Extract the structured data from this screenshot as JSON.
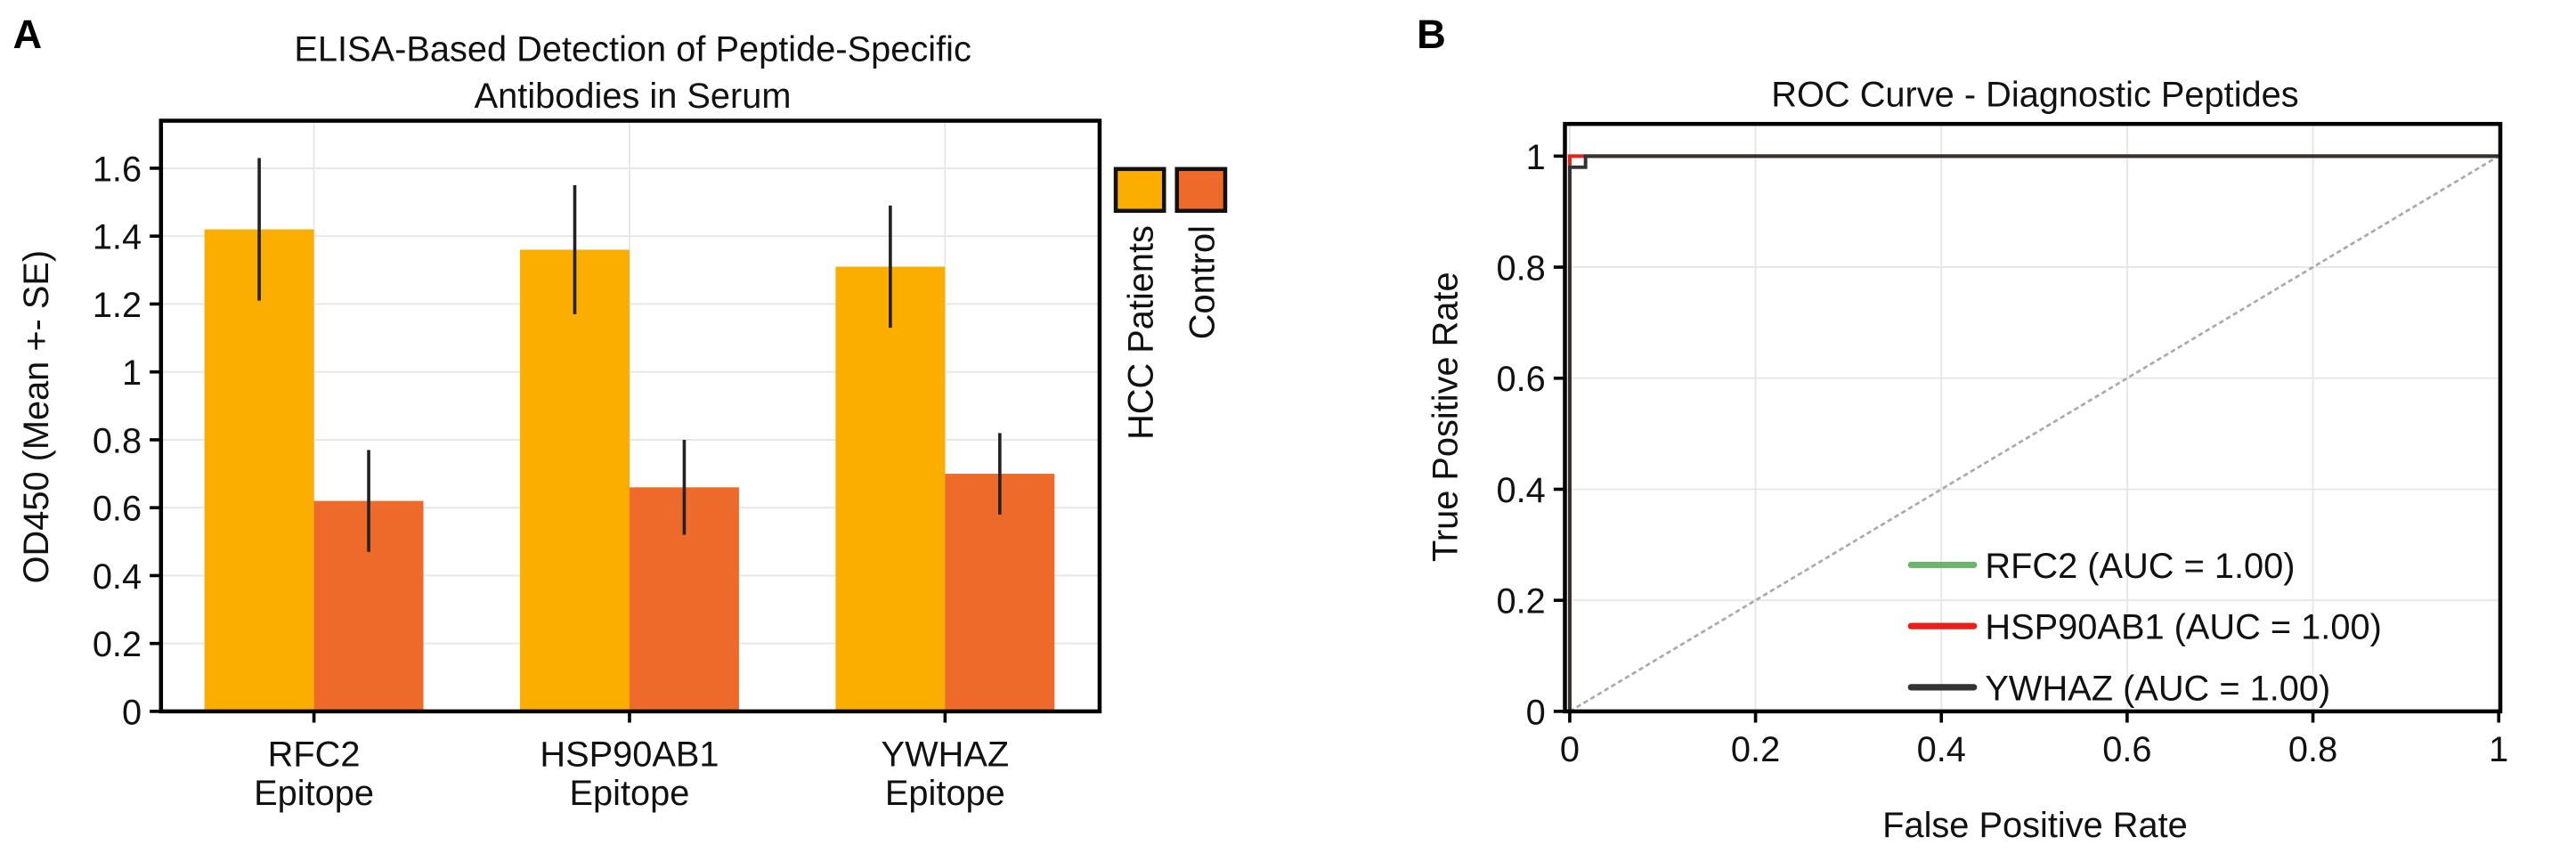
{
  "chart_data": [
    {
      "type": "bar",
      "panel_label": "A",
      "title_lines": [
        "ELISA-Based Detection of Peptide-Specific",
        "Antibodies in Serum"
      ],
      "xlabel": "",
      "ylabel": "OD450 (Mean +- SE)",
      "ylim": [
        0,
        1.74
      ],
      "yticks": [
        0,
        0.2,
        0.4,
        0.6,
        0.8,
        1,
        1.2,
        1.4,
        1.6
      ],
      "categories": [
        [
          "RFC2",
          "Epitope"
        ],
        [
          "HSP90AB1",
          "Epitope"
        ],
        [
          "YWHAZ",
          "Epitope"
        ]
      ],
      "grid": true,
      "legend_placement": "right",
      "series": [
        {
          "name": "HCC Patients",
          "color": "#FBAE00",
          "values": [
            1.42,
            1.36,
            1.31
          ],
          "err_low": [
            1.21,
            1.17,
            1.13
          ],
          "err_high": [
            1.63,
            1.55,
            1.49
          ]
        },
        {
          "name": "Control",
          "color": "#EE6A2A",
          "values": [
            0.62,
            0.66,
            0.7
          ],
          "err_low": [
            0.47,
            0.52,
            0.58
          ],
          "err_high": [
            0.77,
            0.8,
            0.82
          ]
        }
      ]
    },
    {
      "type": "line",
      "panel_label": "B",
      "title": "ROC Curve - Diagnostic Peptides",
      "xlabel": "False Positive Rate",
      "ylabel": "True Positive Rate",
      "xlim": [
        0,
        1
      ],
      "ylim": [
        0,
        1
      ],
      "xticks": [
        0,
        0.2,
        0.4,
        0.6,
        0.8,
        1
      ],
      "yticks": [
        0,
        0.2,
        0.4,
        0.6,
        0.8,
        1
      ],
      "grid": true,
      "legend_placement": "bottom-right",
      "diagonal_color": "#AAAAAA",
      "series": [
        {
          "name": "RFC2 (AUC = 1.00)",
          "color": "#6DB56D",
          "x": [
            0,
            0,
            1
          ],
          "y": [
            0,
            1,
            1
          ]
        },
        {
          "name": "HSP90AB1 (AUC = 1.00)",
          "color": "#E8201C",
          "x": [
            0,
            0,
            1
          ],
          "y": [
            0,
            1,
            1
          ]
        },
        {
          "name": "YWHAZ (AUC = 1.00)",
          "color": "#333333",
          "x": [
            0,
            0,
            0.017,
            0.017,
            1
          ],
          "y": [
            0,
            0.98,
            0.98,
            1,
            1
          ]
        }
      ]
    }
  ]
}
